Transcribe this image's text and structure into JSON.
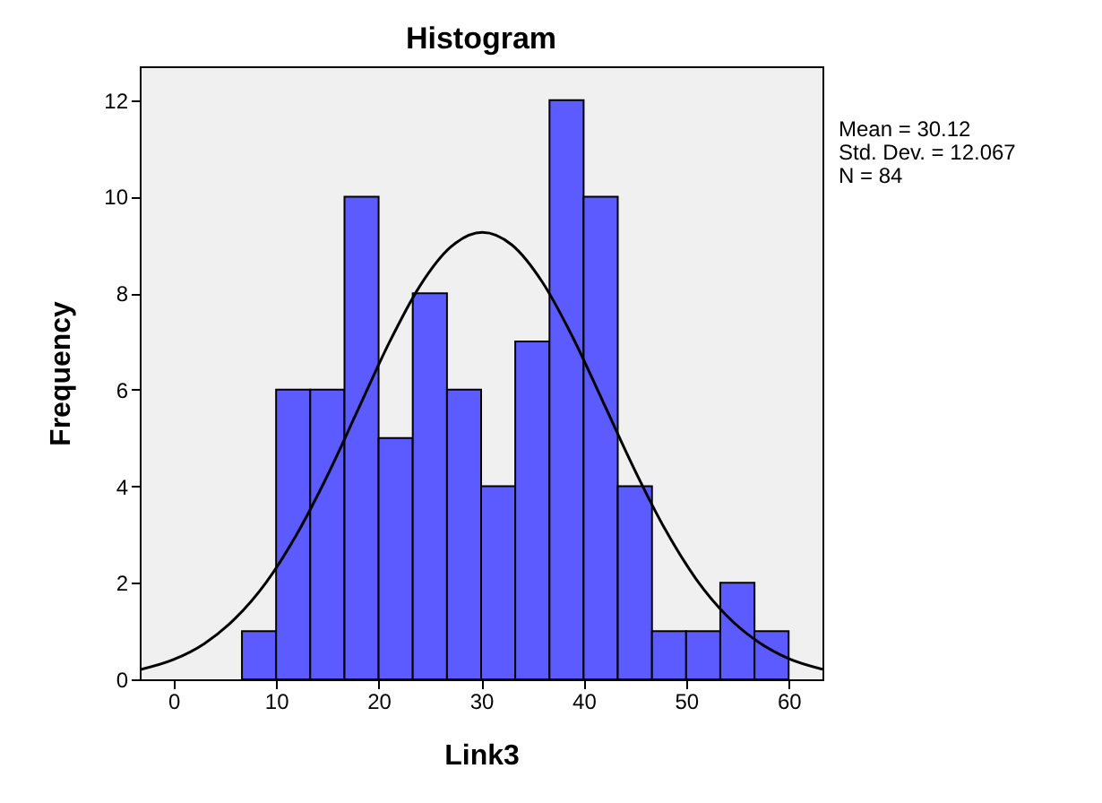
{
  "chart_data": {
    "type": "histogram",
    "title": "Histogram",
    "xlabel": "Link3",
    "ylabel": "Frequency",
    "annotations": [
      "Mean = 30.12",
      "Std. Dev. = 12.067",
      "N = 84"
    ],
    "xlim": [
      -3.3,
      63.3
    ],
    "xticks": [
      0,
      10,
      20,
      30,
      40,
      50,
      60
    ],
    "ylim": [
      0,
      12.7
    ],
    "yticks": [
      0,
      2,
      4,
      6,
      8,
      10,
      12
    ],
    "series": [
      {
        "type": "histogram",
        "color": "#5b5bff",
        "bins": [
          6.67,
          10,
          13.33,
          16.67,
          20,
          23.33,
          26.67,
          30,
          33.33,
          36.67,
          40,
          43.33,
          46.67,
          50,
          53.33,
          56.67,
          60
        ],
        "values": [
          1,
          6,
          6,
          10,
          5,
          8,
          6,
          4,
          7,
          12,
          10,
          4,
          1,
          1,
          2,
          1
        ]
      },
      {
        "type": "line",
        "color": "#000000",
        "x": [
          -3.3,
          0,
          3,
          6,
          9,
          12,
          15,
          18,
          21,
          24,
          27,
          30.12,
          33,
          36,
          39,
          42,
          45,
          48,
          51,
          54,
          57,
          60,
          63.3
        ],
        "values": [
          0.2,
          0.41,
          0.74,
          1.26,
          2,
          3,
          4.22,
          5.59,
          6.96,
          8.14,
          8.95,
          9.26,
          9,
          8.22,
          7.06,
          5.7,
          4.33,
          3.09,
          2.07,
          1.31,
          0.78,
          0.43,
          0.21
        ]
      }
    ]
  }
}
